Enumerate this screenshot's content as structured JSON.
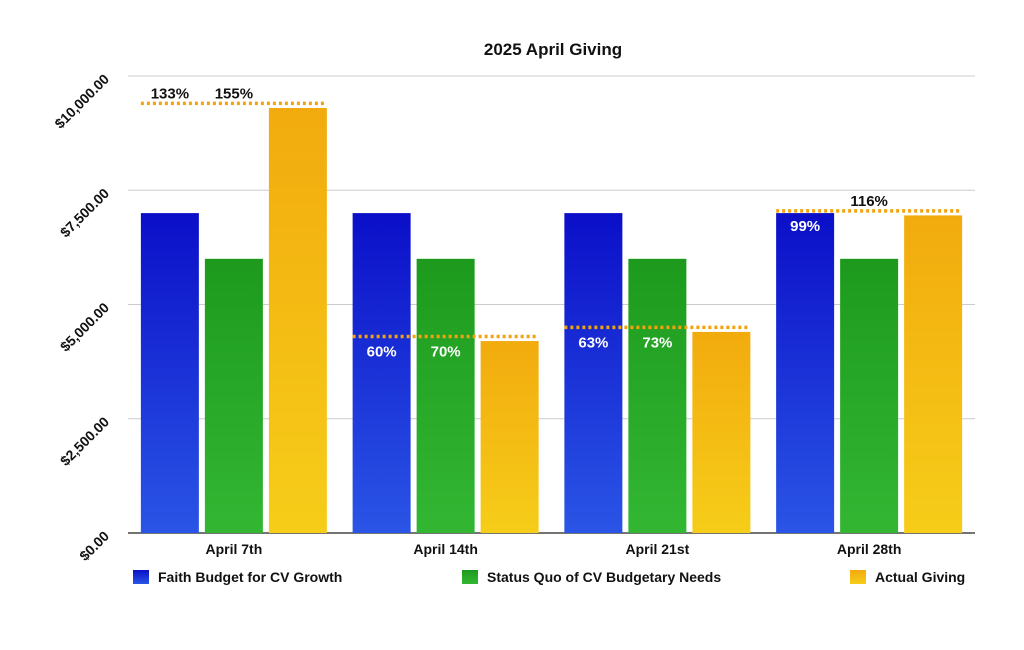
{
  "chart_data": {
    "type": "bar",
    "title": "2025 April Giving",
    "xlabel": "",
    "ylabel": "",
    "ylim": [
      0,
      10000
    ],
    "yticks": [
      {
        "value": 0,
        "label": "$0.00"
      },
      {
        "value": 2500,
        "label": "$2,500.00"
      },
      {
        "value": 5000,
        "label": "$5,000.00"
      },
      {
        "value": 7500,
        "label": "$7,500.00"
      },
      {
        "value": 10000,
        "label": "$10,000.00"
      }
    ],
    "grid": true,
    "legend_position": "bottom",
    "categories": [
      "April 7th",
      "April 14th",
      "April 21st",
      "April 28th"
    ],
    "series": [
      {
        "name": "Faith Budget for CV Growth",
        "color": "#1a1fd0",
        "values": [
          7000,
          7000,
          7000,
          7000
        ]
      },
      {
        "name": "Status Quo of CV Budgetary Needs",
        "color": "#27a327",
        "values": [
          6000,
          6000,
          6000,
          6000
        ]
      },
      {
        "name": "Actual Giving",
        "color": "#f2ad10",
        "values": [
          9300,
          4200,
          4400,
          6950
        ]
      }
    ],
    "reference_lines": [
      {
        "category": "April 7th",
        "value": 9400
      },
      {
        "category": "April 14th",
        "value": 4300
      },
      {
        "category": "April 21st",
        "value": 4500
      },
      {
        "category": "April 28th",
        "value": 7050
      }
    ],
    "annotations": [
      {
        "category": "April 7th",
        "series": 0,
        "text": "133%",
        "position": "above-line"
      },
      {
        "category": "April 7th",
        "series": 1,
        "text": "155%",
        "position": "above-line"
      },
      {
        "category": "April 14th",
        "series": 0,
        "text": "60%",
        "position": "inside"
      },
      {
        "category": "April 14th",
        "series": 1,
        "text": "70%",
        "position": "inside"
      },
      {
        "category": "April 21st",
        "series": 0,
        "text": "63%",
        "position": "inside"
      },
      {
        "category": "April 21st",
        "series": 1,
        "text": "73%",
        "position": "inside"
      },
      {
        "category": "April 28th",
        "series": 0,
        "text": "99%",
        "position": "inside"
      },
      {
        "category": "April 28th",
        "series": 1,
        "text": "116%",
        "position": "above-line"
      }
    ],
    "line_color": "#f2a20c"
  }
}
